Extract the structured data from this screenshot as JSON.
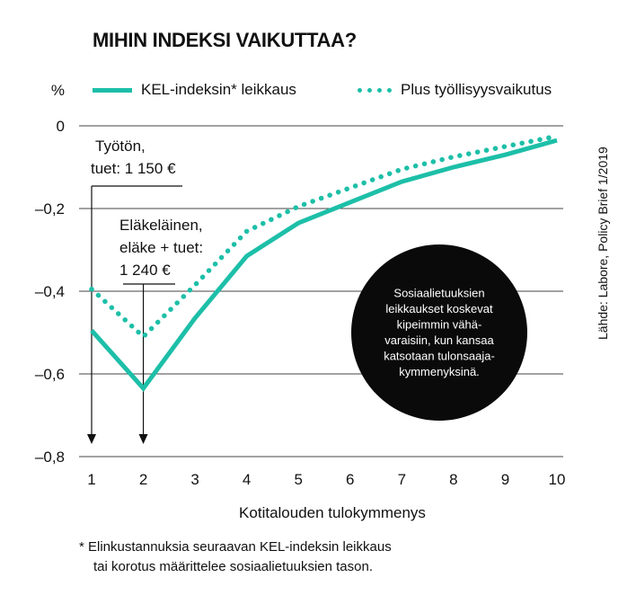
{
  "chart_data": {
    "type": "line",
    "title": "MIHIN INDEKSI VAIKUTTAA?",
    "ylabel": "%",
    "xlabel": "Kotitalouden tulokymmenys",
    "x": [
      1,
      2,
      3,
      4,
      5,
      6,
      7,
      8,
      9,
      10
    ],
    "ylim": [
      -0.8,
      0
    ],
    "y_ticks": [
      "0",
      "–0,2",
      "–0,4",
      "–0,6",
      "–0,8"
    ],
    "y_tick_values": [
      0,
      -0.2,
      -0.4,
      -0.6,
      -0.8
    ],
    "x_ticks": [
      "1",
      "2",
      "3",
      "4",
      "5",
      "6",
      "7",
      "8",
      "9",
      "10"
    ],
    "grid": "horizontal",
    "legend_position": "top",
    "series": [
      {
        "name": "KEL-indeksin* leikkaus",
        "style": "solid",
        "color": "#1dbfa8",
        "values": [
          -0.495,
          -0.635,
          -0.465,
          -0.315,
          -0.235,
          -0.185,
          -0.135,
          -0.1,
          -0.07,
          -0.035
        ]
      },
      {
        "name": "Plus työllisyysvaikutus",
        "style": "dotted",
        "color": "#1dbfa8",
        "values": [
          -0.395,
          -0.51,
          -0.385,
          -0.255,
          -0.195,
          -0.15,
          -0.105,
          -0.075,
          -0.05,
          -0.025
        ]
      }
    ],
    "annotations": [
      {
        "x": 1,
        "lines": [
          "Työtön,",
          "tuet: 1 150 €"
        ]
      },
      {
        "x": 2,
        "lines": [
          "Eläkeläinen,",
          "eläke + tuet:",
          "1 240 €"
        ]
      }
    ],
    "callout": [
      "Sosiaalietuuksien",
      "leikkaukset koskevat",
      "kipeimmin vähä-",
      "varaisiin, kun kansaa",
      "katsotaan tulonsaaja-",
      "kymmenyksinä."
    ]
  },
  "source": "Lähde: Labore, Policy Brief 1/2019",
  "footnote": {
    "line1": "* Elinkustannuksia seuraavan KEL-indeksin leikkaus",
    "line2": "tai korotus määrittelee sosiaalietuuksien tason."
  }
}
